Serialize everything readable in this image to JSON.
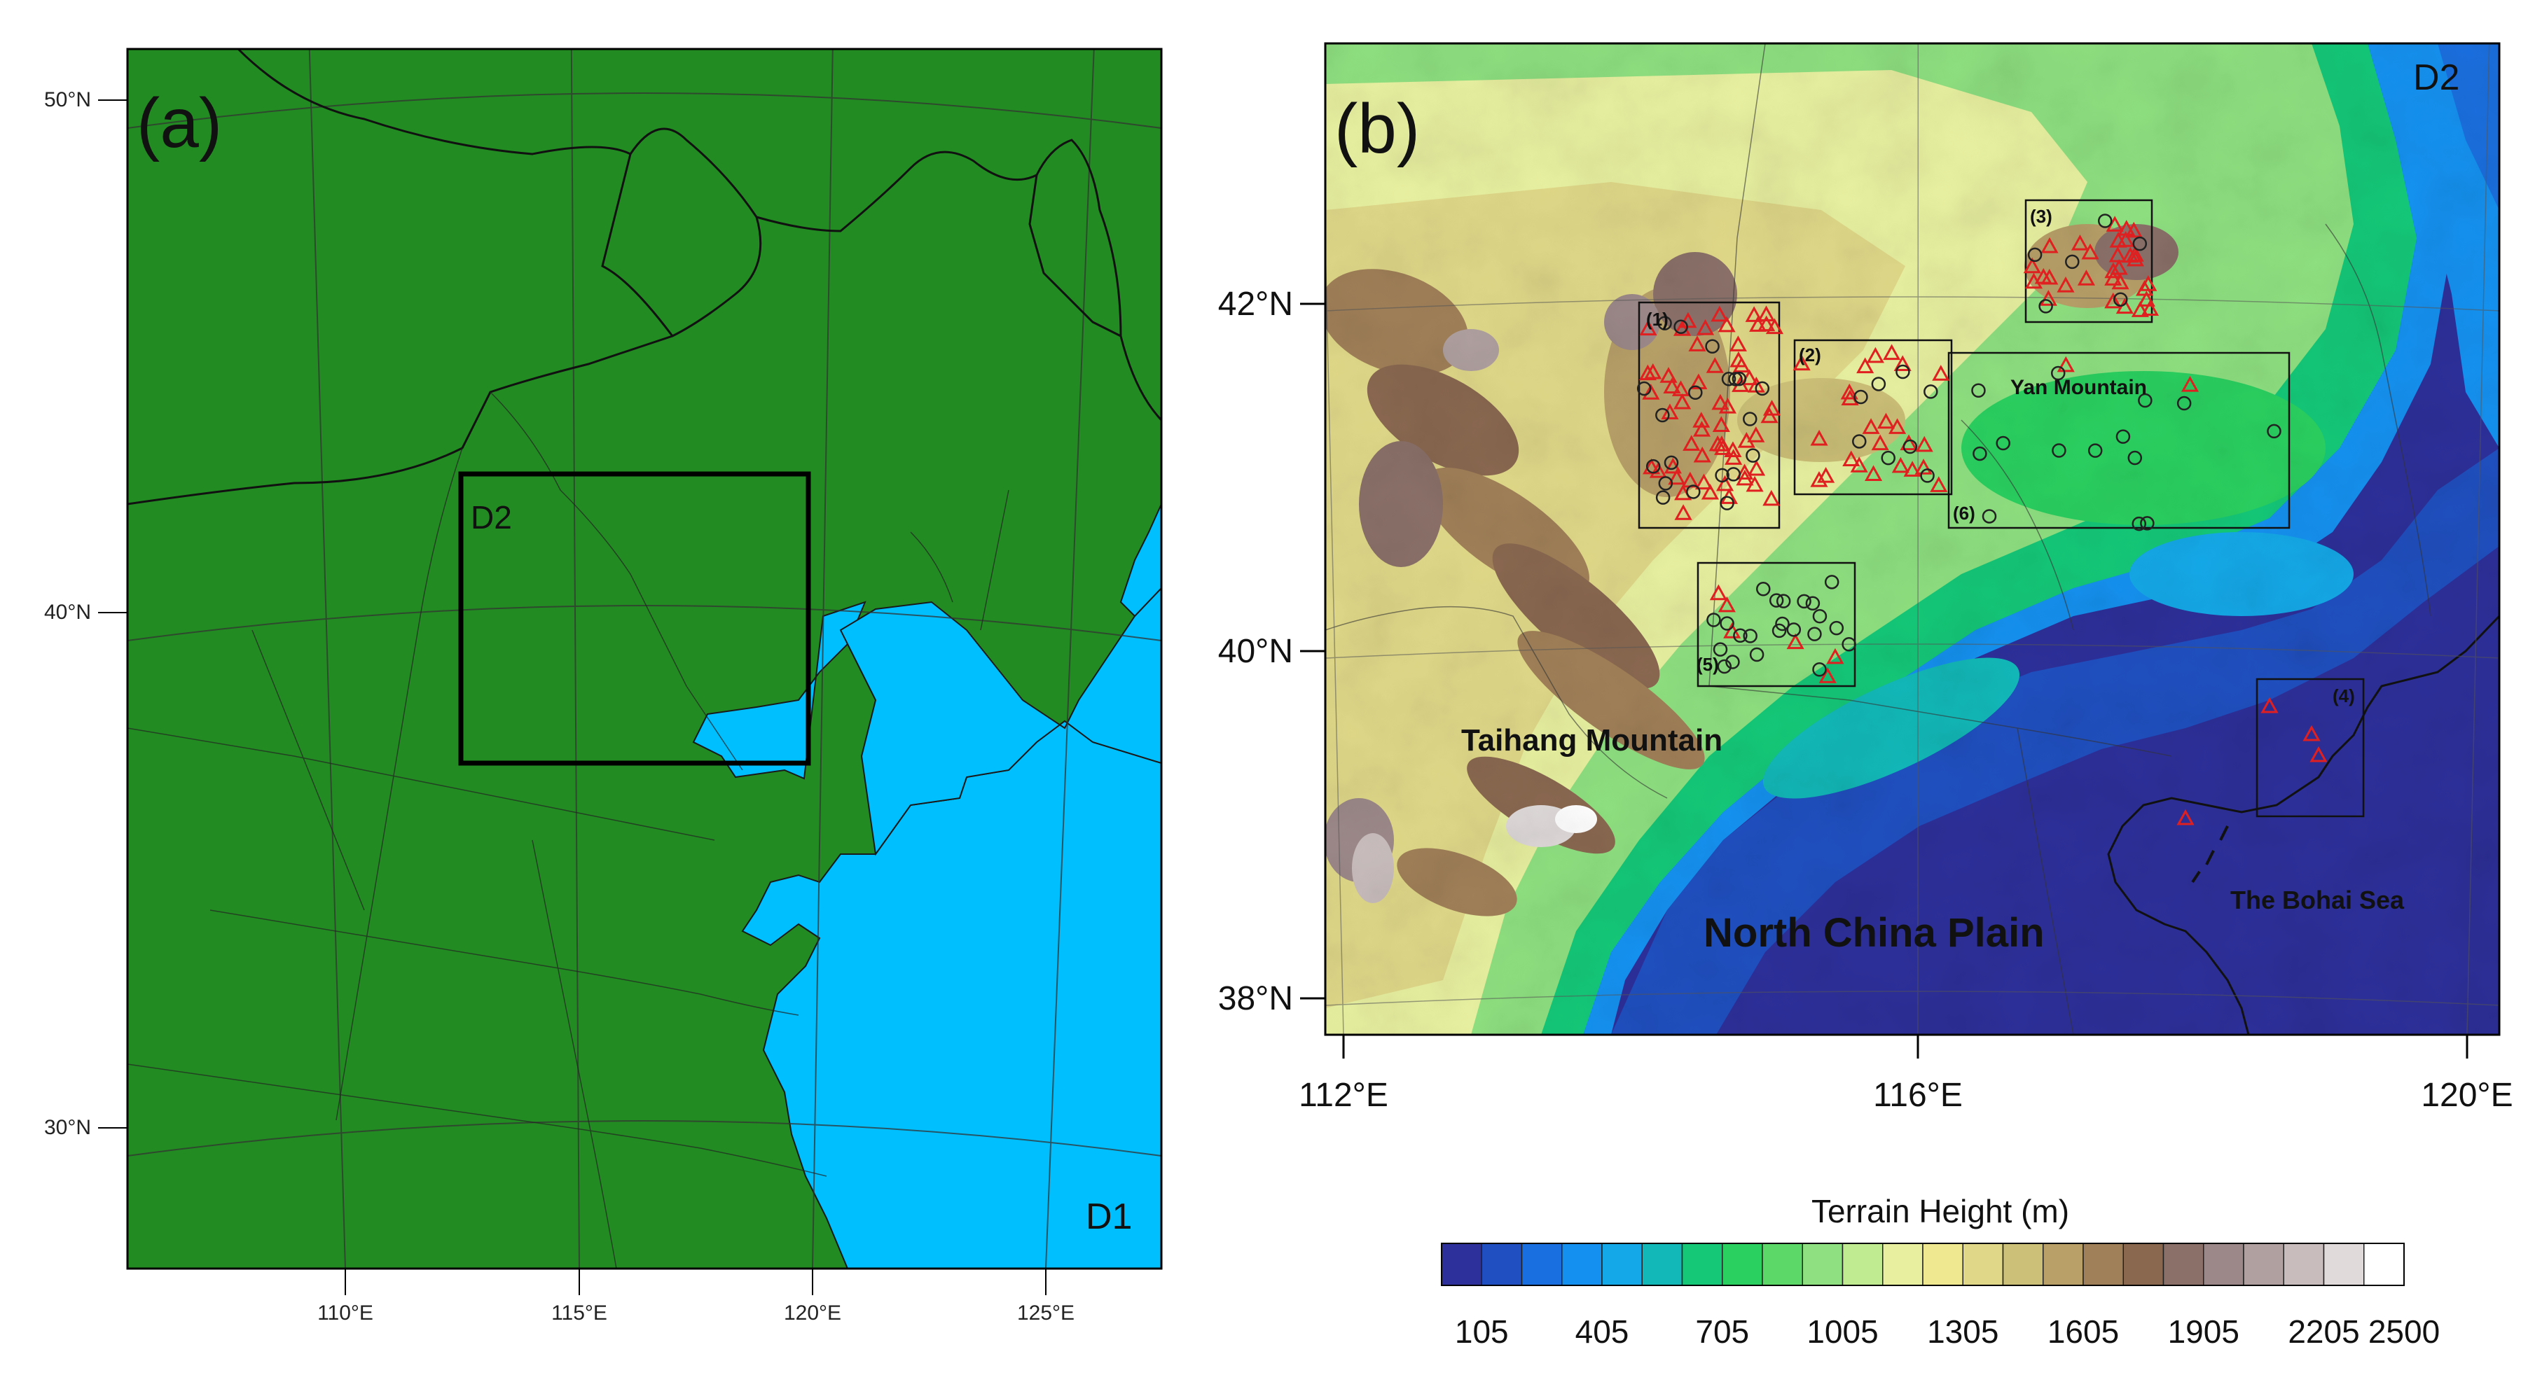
{
  "panel_a": {
    "label": "(a)",
    "domain_outer": "D1",
    "domain_inner": "D2",
    "colors": {
      "land": "#228B22",
      "sea": "#00BFFF",
      "boundary": "#1a1a1a"
    },
    "lat_ticks": [
      "50°N",
      "40°N",
      "30°N"
    ],
    "lon_ticks": [
      "110°E",
      "115°E",
      "120°E",
      "125°E"
    ]
  },
  "panel_b": {
    "label": "(b)",
    "domain": "D2",
    "lat_ticks": [
      "42°N",
      "40°N",
      "38°N"
    ],
    "lon_ticks": [
      "112°E",
      "116°E",
      "120°E"
    ],
    "regions": {
      "taihang": "Taihang Mountain",
      "yan": "Yan Mountain",
      "plain": "North China Plain",
      "bohai": "The Bohai Sea"
    },
    "boxes": [
      "(1)",
      "(2)",
      "(3)",
      "(4)",
      "(5)",
      "(6)"
    ],
    "marker_colors": {
      "triangle": "#e02020",
      "circle": "#222222"
    }
  },
  "colorbar": {
    "title": "Terrain Height (m)",
    "tick_labels": [
      "105",
      "405",
      "705",
      "1005",
      "1305",
      "1605",
      "1905",
      "2205",
      "2500"
    ],
    "colors": [
      "#2d2f9a",
      "#1f4fc0",
      "#1a6fe0",
      "#1491f0",
      "#14a8e8",
      "#12b8b8",
      "#14c878",
      "#2ad060",
      "#5cd868",
      "#8ee080",
      "#c0eb90",
      "#e8f0a0",
      "#f0e890",
      "#e0d888",
      "#ccc078",
      "#b8a068",
      "#a08058",
      "#8a6850",
      "#8a7068",
      "#9c8888",
      "#b0a0a0",
      "#c8bcbc",
      "#e0dada",
      "#ffffff"
    ]
  }
}
